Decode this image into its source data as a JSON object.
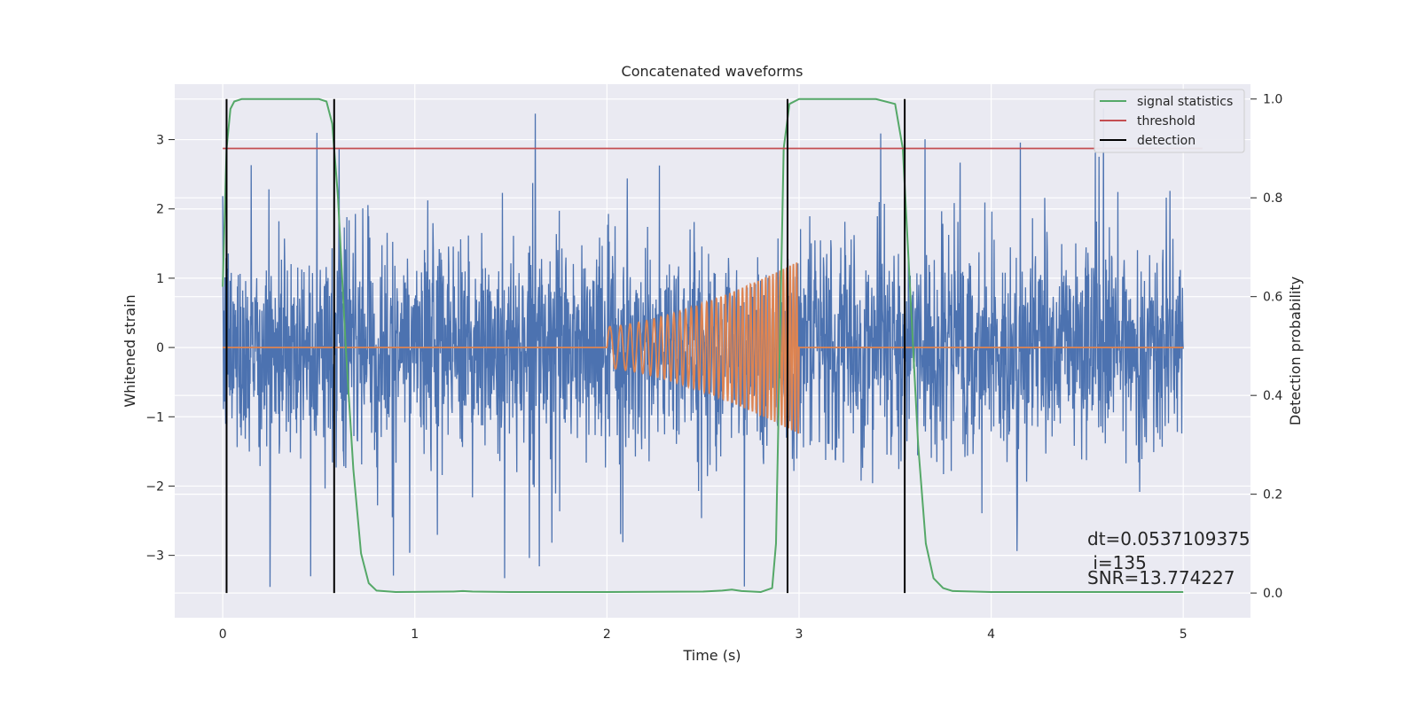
{
  "chart_data": {
    "type": "line",
    "title": "Concatenated waveforms",
    "xlabel": "Time (s)",
    "ylabel": "Whitened strain",
    "ylabel_right": "Detection probability",
    "xlim": [
      -0.25,
      5.35
    ],
    "ylim": [
      -3.9,
      3.8
    ],
    "ylim_right": [
      -0.05,
      1.03
    ],
    "x_ticks": [
      0,
      1,
      2,
      3,
      4,
      5
    ],
    "y_ticks": [
      -3,
      -2,
      -1,
      0,
      1,
      2,
      3
    ],
    "y_ticks_right": [
      0.0,
      0.2,
      0.4,
      0.6,
      0.8,
      1.0
    ],
    "grid": true,
    "legend_placement": "top-right",
    "legend": [
      "signal statistics",
      "threshold",
      "detection"
    ],
    "colors": {
      "strain": "#4c72b0",
      "injected_signal": "#dd8452",
      "signal_statistics": "#55a868",
      "threshold": "#c44e52",
      "detection": "#000000",
      "background": "#eaeaf2",
      "grid": "#ffffff"
    },
    "series": [
      {
        "name": "signal statistics",
        "axis": "right",
        "x": [
          0.0,
          0.02,
          0.04,
          0.06,
          0.1,
          0.2,
          0.5,
          0.54,
          0.57,
          0.6,
          0.64,
          0.68,
          0.72,
          0.76,
          0.8,
          0.9,
          1.2,
          1.25,
          1.3,
          1.5,
          2.0,
          2.5,
          2.6,
          2.65,
          2.7,
          2.8,
          2.86,
          2.88,
          2.9,
          2.92,
          2.95,
          3.0,
          3.1,
          3.4,
          3.5,
          3.54,
          3.58,
          3.62,
          3.66,
          3.7,
          3.75,
          3.8,
          4.0,
          5.0
        ],
        "y": [
          0.62,
          0.9,
          0.98,
          0.995,
          1.0,
          1.0,
          1.0,
          0.995,
          0.95,
          0.8,
          0.5,
          0.25,
          0.08,
          0.02,
          0.005,
          0.002,
          0.003,
          0.004,
          0.003,
          0.002,
          0.002,
          0.003,
          0.005,
          0.007,
          0.004,
          0.002,
          0.01,
          0.1,
          0.5,
          0.9,
          0.99,
          1.0,
          1.0,
          1.0,
          0.99,
          0.9,
          0.6,
          0.3,
          0.1,
          0.03,
          0.01,
          0.004,
          0.002,
          0.002
        ]
      },
      {
        "name": "threshold",
        "axis": "right",
        "x": [
          0.0,
          5.1
        ],
        "y": [
          0.9,
          0.9
        ]
      }
    ],
    "detections_x": [
      0.02,
      0.58,
      2.94,
      3.55
    ],
    "strain": {
      "x_range": [
        0.0,
        5.0
      ],
      "core_amplitude": 0.75,
      "spike_max": 3.45,
      "spike_min": -3.55
    },
    "injected_signal": {
      "x_start": 2.0,
      "x_end": 3.0,
      "amplitude_start": 0.3,
      "amplitude_end": 1.25,
      "baseline": 0
    },
    "annotations": [
      "dt=0.0537109375",
      " i=135",
      "SNR=13.774227"
    ]
  }
}
